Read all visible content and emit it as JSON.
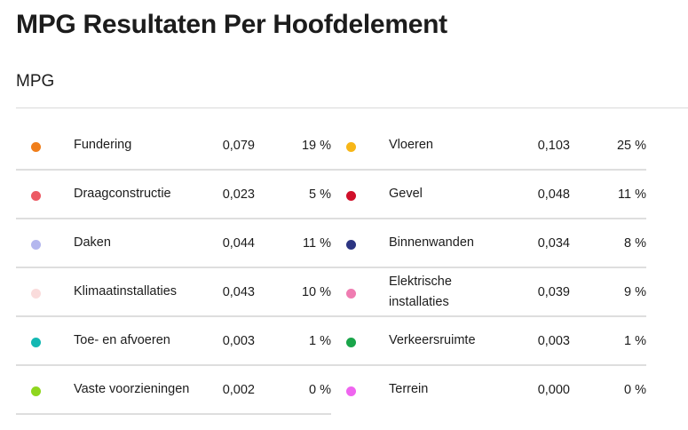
{
  "page_title": "MPG Resultaten Per Hoofdelement",
  "section_title": "MPG",
  "items": [
    {
      "name": "Fundering",
      "value": "0,079",
      "percent": "19 %",
      "color": "#f07e1b"
    },
    {
      "name": "Vloeren",
      "value": "0,103",
      "percent": "25 %",
      "color": "#f7b617"
    },
    {
      "name": "Draagconstructie",
      "value": "0,023",
      "percent": "5 %",
      "color": "#ec5a64"
    },
    {
      "name": "Gevel",
      "value": "0,048",
      "percent": "11 %",
      "color": "#d0102a"
    },
    {
      "name": "Daken",
      "value": "0,044",
      "percent": "11 %",
      "color": "#b4b7ee"
    },
    {
      "name": "Binnenwanden",
      "value": "0,034",
      "percent": "8 %",
      "color": "#2c3582"
    },
    {
      "name": "Klimaatinstallaties",
      "value": "0,043",
      "percent": "10 %",
      "color": "#fadcdc"
    },
    {
      "name": "Elektrische installaties",
      "value": "0,039",
      "percent": "9 %",
      "color": "#ef7cb1"
    },
    {
      "name": "Toe- en afvoeren",
      "value": "0,003",
      "percent": "1 %",
      "color": "#13b8b3"
    },
    {
      "name": "Verkeersruimte",
      "value": "0,003",
      "percent": "1 %",
      "color": "#1aa54a"
    },
    {
      "name": "Vaste voorzieningen",
      "value": "0,002",
      "percent": "0 %",
      "color": "#8fd61e"
    },
    {
      "name": "Terrein",
      "value": "0,000",
      "percent": "0 %",
      "color": "#ef65ef"
    }
  ]
}
